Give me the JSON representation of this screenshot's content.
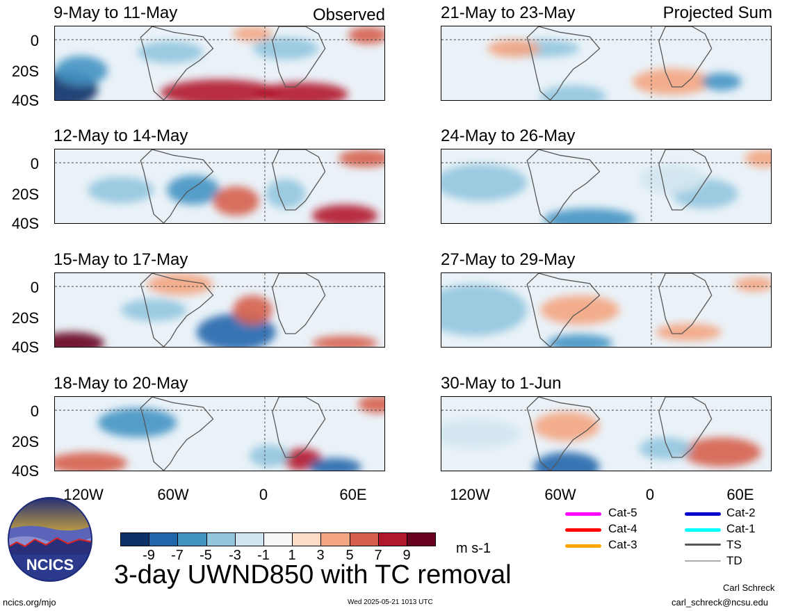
{
  "panels": {
    "observed_label": "Observed",
    "projected_label": "Projected Sum",
    "left": [
      "9-May to 11-May",
      "12-May to 14-May",
      "15-May to 17-May",
      "18-May to 20-May"
    ],
    "right": [
      "21-May to 23-May",
      "24-May to 26-May",
      "27-May to 29-May",
      "30-May to 1-Jun"
    ]
  },
  "axes": {
    "y_ticks": [
      "0",
      "20S",
      "40S"
    ],
    "x_ticks": [
      "120W",
      "60W",
      "0",
      "60E"
    ]
  },
  "colorbar": {
    "ticks": [
      "-9",
      "-7",
      "-5",
      "-3",
      "-1",
      "1",
      "3",
      "5",
      "7",
      "9"
    ],
    "units": "m s-1",
    "colors": [
      "#0b3168",
      "#2166ac",
      "#4393c3",
      "#92c5de",
      "#d1e5f0",
      "#f7f7f7",
      "#fddbc7",
      "#f4a582",
      "#d6604d",
      "#b2182b",
      "#67001f"
    ]
  },
  "title": "3-day UWND850 with TC removal",
  "logo": {
    "text": "NCICS"
  },
  "legend": {
    "items": [
      {
        "label": "Cat-5",
        "color": "#ff00ff"
      },
      {
        "label": "Cat-4",
        "color": "#ff0000"
      },
      {
        "label": "Cat-3",
        "color": "#ffa500"
      },
      {
        "label": "Cat-2",
        "color": "#0000cc"
      },
      {
        "label": "Cat-1",
        "color": "#00ffff"
      },
      {
        "label": "TS",
        "color": "#555555"
      },
      {
        "label": "TD",
        "color": "#aaaaaa"
      }
    ]
  },
  "footer": {
    "left": "ncics.org/mjo",
    "center": "Wed 2025-05-21 1013 UTC",
    "author": "Carl Schreck",
    "email": "carl_schreck@ncsu.edu"
  },
  "chart_data": {
    "type": "heatmap",
    "variable": "3-day UWND850 with TC removal",
    "units": "m s-1",
    "levels": [
      -9,
      -7,
      -5,
      -3,
      -1,
      1,
      3,
      5,
      7,
      9
    ],
    "x_ticks": [
      "120W",
      "60W",
      "0",
      "60E"
    ],
    "y_ticks": [
      "0",
      "20S",
      "40S"
    ],
    "panels": [
      {
        "period": "9-May to 11-May",
        "group": "Observed"
      },
      {
        "period": "12-May to 14-May",
        "group": "Observed"
      },
      {
        "period": "15-May to 17-May",
        "group": "Observed"
      },
      {
        "period": "18-May to 20-May",
        "group": "Observed"
      },
      {
        "period": "21-May to 23-May",
        "group": "Projected Sum"
      },
      {
        "period": "24-May to 26-May",
        "group": "Projected Sum"
      },
      {
        "period": "27-May to 29-May",
        "group": "Projected Sum"
      },
      {
        "period": "30-May to 1-Jun",
        "group": "Projected Sum"
      }
    ]
  }
}
